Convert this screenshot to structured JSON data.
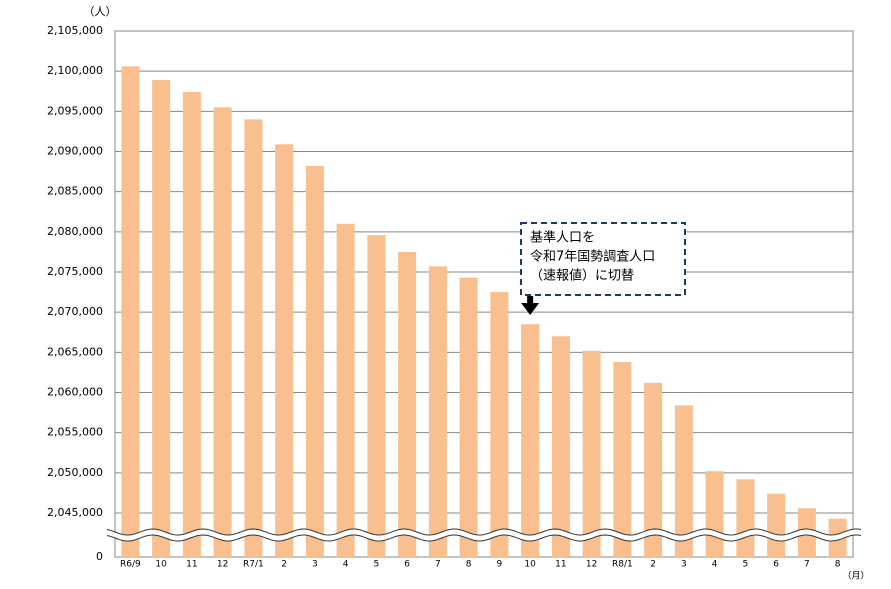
{
  "chart_data": {
    "type": "bar",
    "y_unit": "（人）",
    "x_unit": "（月）",
    "categories": [
      "R6/9",
      "10",
      "11",
      "12",
      "R7/1",
      "2",
      "3",
      "4",
      "5",
      "6",
      "7",
      "8",
      "9",
      "10",
      "11",
      "12",
      "R8/1",
      "2",
      "3",
      "4",
      "5",
      "6",
      "7",
      "8"
    ],
    "values": [
      2100600,
      2098900,
      2097400,
      2095500,
      2094000,
      2090900,
      2088200,
      2081000,
      2079600,
      2077500,
      2075700,
      2074300,
      2072500,
      2068500,
      2067000,
      2065200,
      2063800,
      2061200,
      2058400,
      2050200,
      2049200,
      2047400,
      2045600,
      2044300
    ],
    "color": "#fabf8f",
    "ylim": [
      0,
      2105000
    ],
    "yticks": [
      0,
      {
        "value": 2045000,
        "label": "2,045,000"
      },
      {
        "value": 2050000,
        "label": "2,050,000"
      },
      {
        "value": 2055000,
        "label": "2,055,000"
      },
      {
        "value": 2060000,
        "label": "2,060,000"
      },
      {
        "value": 2065000,
        "label": "2,065,000"
      },
      {
        "value": 2070000,
        "label": "2,070,000"
      },
      {
        "value": 2075000,
        "label": "2,075,000"
      },
      {
        "value": 2080000,
        "label": "2,080,000"
      },
      {
        "value": 2085000,
        "label": "2,085,000"
      },
      {
        "value": 2090000,
        "label": "2,090,000"
      },
      {
        "value": 2095000,
        "label": "2,095,000"
      },
      {
        "value": 2100000,
        "label": "2,100,000"
      },
      {
        "value": 2105000,
        "label": "2,105,000"
      }
    ],
    "grid": true,
    "axis_break": true,
    "annotation": {
      "lines": [
        "基準人口を",
        "令和7年国勢調査人口",
        "（速報値）に切替"
      ],
      "category_index": 13
    }
  }
}
